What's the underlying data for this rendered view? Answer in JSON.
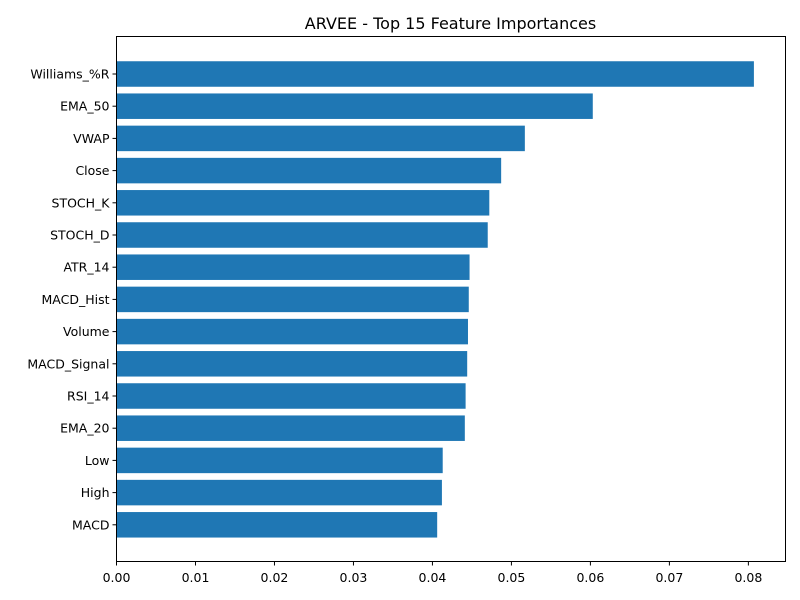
{
  "chart_data": {
    "type": "bar",
    "orientation": "horizontal",
    "title": "ARVEE - Top 15 Feature Importances",
    "xlabel": "",
    "ylabel": "",
    "xlim": [
      0,
      0.0847
    ],
    "xticks": [
      "0.00",
      "0.01",
      "0.02",
      "0.03",
      "0.04",
      "0.05",
      "0.06",
      "0.07",
      "0.08"
    ],
    "grid": false,
    "legend": "none",
    "bar_color": "#1f77b4",
    "categories": [
      "Williams_%R",
      "EMA_50",
      "VWAP",
      "Close",
      "STOCH_K",
      "STOCH_D",
      "ATR_14",
      "MACD_Hist",
      "Volume",
      "MACD_Signal",
      "RSI_14",
      "EMA_20",
      "Low",
      "High",
      "MACD"
    ],
    "values": [
      0.0807,
      0.0603,
      0.0517,
      0.0487,
      0.0472,
      0.047,
      0.0447,
      0.0446,
      0.0445,
      0.0444,
      0.0442,
      0.0441,
      0.0413,
      0.0412,
      0.0406
    ]
  }
}
